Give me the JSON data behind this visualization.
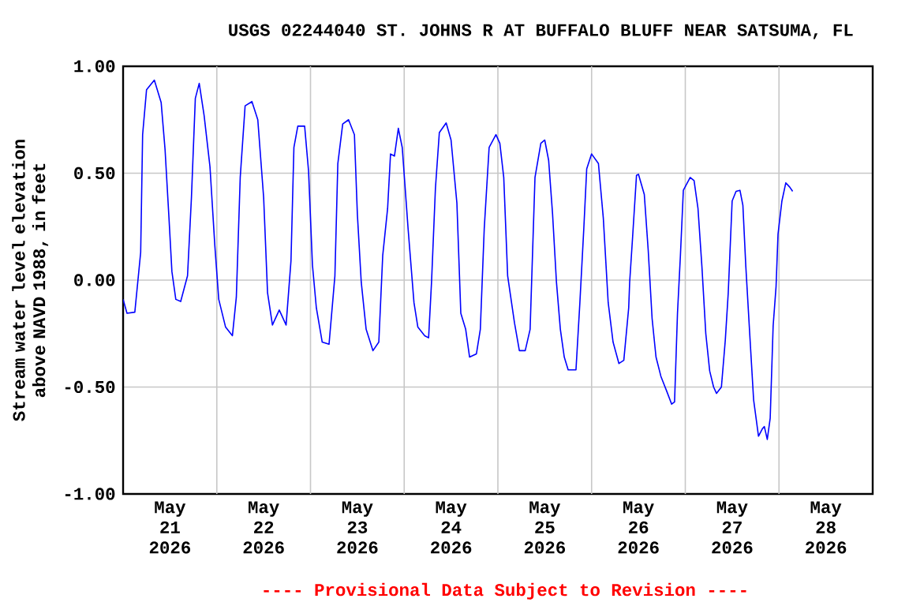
{
  "chart_data": {
    "type": "line",
    "title": "USGS 02244040 ST. JOHNS R AT BUFFALO BLUFF NEAR SATSUMA, FL",
    "ylabel": "Stream water level elevation above NAVD 1988, in feet",
    "annotations": [
      "---- Provisional Data Subject to Revision ----"
    ],
    "xlim": [
      "2026-05-21T00:00",
      "2026-05-29T00:00"
    ],
    "xticks": [
      {
        "value": "2026-05-21T12:00",
        "label": "May 21 2026"
      },
      {
        "value": "2026-05-22T12:00",
        "label": "May 22 2026"
      },
      {
        "value": "2026-05-23T12:00",
        "label": "May 23 2026"
      },
      {
        "value": "2026-05-24T12:00",
        "label": "May 24 2026"
      },
      {
        "value": "2026-05-25T12:00",
        "label": "May 25 2026"
      },
      {
        "value": "2026-05-26T12:00",
        "label": "May 26 2026"
      },
      {
        "value": "2026-05-27T12:00",
        "label": "May 27 2026"
      },
      {
        "value": "2026-05-28T12:00",
        "label": "May 28 2026"
      },
      {
        "value": "2026-05-22T00:00",
        "label": null
      },
      {
        "value": "2026-05-23T00:00",
        "label": null
      },
      {
        "value": "2026-05-24T00:00",
        "label": null
      },
      {
        "value": "2026-05-25T00:00",
        "label": null
      },
      {
        "value": "2026-05-26T00:00",
        "label": null
      },
      {
        "value": "2026-05-27T00:00",
        "label": null
      },
      {
        "value": "2026-05-28T00:00",
        "label": null
      }
    ],
    "ylim": [
      -1,
      1
    ],
    "yticks": [
      {
        "value": -1,
        "label": "-1.00"
      },
      {
        "value": -0.5,
        "label": "-0.50"
      },
      {
        "value": 0,
        "label": "0.00"
      },
      {
        "value": 0.5,
        "label": "0.50"
      },
      {
        "value": 1,
        "label": "1.00"
      }
    ],
    "grid": true,
    "x": [
      "2026-05-21T00:00",
      "2026-05-21T01:00",
      "2026-05-21T03:00",
      "2026-05-21T04:30",
      "2026-05-21T05:00",
      "2026-05-21T06:00",
      "2026-05-21T08:00",
      "2026-05-21T09:45",
      "2026-05-21T10:45",
      "2026-05-21T11:45",
      "2026-05-21T12:30",
      "2026-05-21T13:30",
      "2026-05-21T14:45",
      "2026-05-21T16:30",
      "2026-05-21T17:30",
      "2026-05-21T18:30",
      "2026-05-21T19:30",
      "2026-05-21T20:45",
      "2026-05-21T22:15",
      "2026-05-21T23:30",
      "2026-05-22T00:30",
      "2026-05-22T02:15",
      "2026-05-22T04:00",
      "2026-05-22T05:00",
      "2026-05-22T06:00",
      "2026-05-22T07:15",
      "2026-05-22T09:00",
      "2026-05-22T10:30",
      "2026-05-22T12:00",
      "2026-05-22T13:00",
      "2026-05-22T14:15",
      "2026-05-22T16:00",
      "2026-05-22T17:45",
      "2026-05-22T19:00",
      "2026-05-22T19:45",
      "2026-05-22T20:45",
      "2026-05-22T22:30",
      "2026-05-22T23:30",
      "2026-05-23T00:30",
      "2026-05-23T01:30",
      "2026-05-23T03:00",
      "2026-05-23T04:45",
      "2026-05-23T06:15",
      "2026-05-23T07:00",
      "2026-05-23T08:15",
      "2026-05-23T09:45",
      "2026-05-23T11:15",
      "2026-05-23T12:00",
      "2026-05-23T13:00",
      "2026-05-23T14:15",
      "2026-05-23T16:00",
      "2026-05-23T17:30",
      "2026-05-23T18:30",
      "2026-05-23T19:45",
      "2026-05-23T20:30",
      "2026-05-23T21:30",
      "2026-05-23T22:30",
      "2026-05-23T23:30",
      "2026-05-24T01:00",
      "2026-05-24T02:30",
      "2026-05-24T03:30",
      "2026-05-24T05:15",
      "2026-05-24T06:15",
      "2026-05-24T07:00",
      "2026-05-24T08:00",
      "2026-05-24T09:00",
      "2026-05-24T10:45",
      "2026-05-24T12:00",
      "2026-05-24T13:30",
      "2026-05-24T14:30",
      "2026-05-24T15:45",
      "2026-05-24T16:45",
      "2026-05-24T18:30",
      "2026-05-24T19:30",
      "2026-05-24T20:30",
      "2026-05-24T21:45",
      "2026-05-24T23:30",
      "2026-05-25T00:30",
      "2026-05-25T01:30",
      "2026-05-25T02:30",
      "2026-05-25T04:15",
      "2026-05-25T05:30",
      "2026-05-25T07:00",
      "2026-05-25T08:15",
      "2026-05-25T09:30",
      "2026-05-25T11:00",
      "2026-05-25T12:00",
      "2026-05-25T13:00",
      "2026-05-25T14:00",
      "2026-05-25T15:00",
      "2026-05-25T16:00",
      "2026-05-25T17:00",
      "2026-05-25T18:00",
      "2026-05-25T20:00",
      "2026-05-25T21:00",
      "2026-05-25T22:00",
      "2026-05-25T22:45",
      "2026-05-26T00:00",
      "2026-05-26T01:45",
      "2026-05-26T03:00",
      "2026-05-26T04:15",
      "2026-05-26T05:30",
      "2026-05-26T07:00",
      "2026-05-26T08:15",
      "2026-05-26T09:30",
      "2026-05-26T09:45",
      "2026-05-26T10:30",
      "2026-05-26T11:30",
      "2026-05-26T12:00",
      "2026-05-26T13:30",
      "2026-05-26T14:30",
      "2026-05-26T15:30",
      "2026-05-26T16:30",
      "2026-05-26T17:45",
      "2026-05-26T19:15",
      "2026-05-26T20:30",
      "2026-05-26T21:15",
      "2026-05-26T22:00",
      "2026-05-26T22:45",
      "2026-05-26T23:30",
      "2026-05-27T01:15",
      "2026-05-27T02:15",
      "2026-05-27T03:15",
      "2026-05-27T04:15",
      "2026-05-27T05:15",
      "2026-05-27T06:15",
      "2026-05-27T07:15",
      "2026-05-27T08:00",
      "2026-05-27T09:15",
      "2026-05-27T10:15",
      "2026-05-27T11:00",
      "2026-05-27T12:00",
      "2026-05-27T13:00",
      "2026-05-27T14:00",
      "2026-05-27T14:45",
      "2026-05-27T15:30",
      "2026-05-27T16:30",
      "2026-05-27T17:30",
      "2026-05-27T18:45",
      "2026-05-27T19:45",
      "2026-05-27T20:15",
      "2026-05-27T21:00",
      "2026-05-27T21:45",
      "2026-05-27T22:30",
      "2026-05-27T23:15",
      "2026-05-27T23:45",
      "2026-05-28T00:45",
      "2026-05-28T01:45",
      "2026-05-28T02:45",
      "2026-05-28T03:30"
    ],
    "series": [
      {
        "color": "#0000ff",
        "values": [
          -0.09,
          -0.155,
          -0.15,
          0.13,
          0.68,
          0.89,
          0.935,
          0.83,
          0.61,
          0.29,
          0.04,
          -0.09,
          -0.1,
          0.02,
          0.385,
          0.85,
          0.92,
          0.77,
          0.53,
          0.16,
          -0.09,
          -0.22,
          -0.26,
          -0.08,
          0.48,
          0.815,
          0.835,
          0.75,
          0.385,
          -0.06,
          -0.21,
          -0.14,
          -0.21,
          0.09,
          0.62,
          0.72,
          0.72,
          0.51,
          0.07,
          -0.13,
          -0.29,
          -0.3,
          0.02,
          0.545,
          0.73,
          0.75,
          0.68,
          0.31,
          -0.01,
          -0.23,
          -0.33,
          -0.29,
          0.115,
          0.335,
          0.59,
          0.58,
          0.71,
          0.62,
          0.24,
          -0.105,
          -0.22,
          -0.26,
          -0.27,
          -0.01,
          0.43,
          0.69,
          0.735,
          0.655,
          0.36,
          -0.155,
          -0.23,
          -0.36,
          -0.345,
          -0.23,
          0.24,
          0.62,
          0.68,
          0.64,
          0.48,
          0.02,
          -0.2,
          -0.33,
          -0.33,
          -0.23,
          0.48,
          0.64,
          0.655,
          0.56,
          0.31,
          -0.01,
          -0.23,
          -0.36,
          -0.42,
          -0.42,
          -0.105,
          0.24,
          0.52,
          0.59,
          0.545,
          0.29,
          -0.105,
          -0.29,
          -0.39,
          -0.375,
          -0.13,
          -0.01,
          0.2,
          0.49,
          0.495,
          0.4,
          0.14,
          -0.18,
          -0.36,
          -0.45,
          -0.52,
          -0.58,
          -0.57,
          -0.155,
          0.115,
          0.42,
          0.48,
          0.465,
          0.335,
          0.065,
          -0.25,
          -0.425,
          -0.5,
          -0.53,
          -0.5,
          -0.28,
          -0.06,
          0.37,
          0.415,
          0.42,
          0.35,
          0.065,
          -0.25,
          -0.56,
          -0.73,
          -0.695,
          -0.685,
          -0.745,
          -0.645,
          -0.215,
          -0.03,
          0.215,
          0.37,
          0.455,
          0.435,
          0.415
        ]
      }
    ]
  }
}
